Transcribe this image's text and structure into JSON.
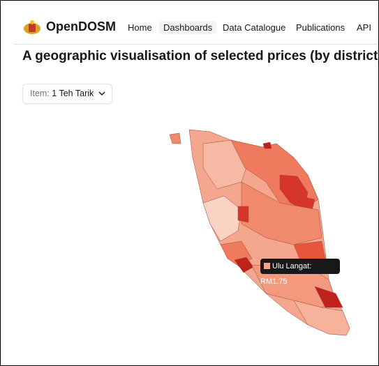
{
  "header": {
    "logo": "OpenDOSM",
    "nav": [
      "Home",
      "Dashboards",
      "Data Catalogue",
      "Publications",
      "API"
    ]
  },
  "page": {
    "title": "A geographic visualisation of selected prices (by district)",
    "filter": {
      "label": "Item:",
      "value": "1 Teh Tarik"
    }
  },
  "map": {
    "tooltip": "Ulu Langat: RM1.75"
  }
}
